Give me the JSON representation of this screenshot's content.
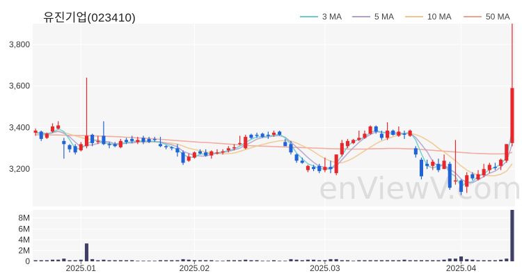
{
  "title": "유진기업(023410)",
  "watermark": "enViewV.com",
  "colors": {
    "up": "#e8262b",
    "down": "#1f63d6",
    "volume": "#3f3f68",
    "panel_bg": "#f6f6f6",
    "grid": "#ffffff"
  },
  "chart_data": {
    "type": "candlestick",
    "price_axis": {
      "ticks": [
        3200,
        3400,
        3600,
        3800
      ],
      "labels": [
        "3,200",
        "3,400",
        "3,600",
        "3,800"
      ],
      "range": [
        3020,
        3900
      ]
    },
    "volume_axis": {
      "ticks": [
        0,
        2,
        4,
        6,
        8
      ],
      "labels": [
        "0",
        "2M",
        "4M",
        "6M",
        "8M"
      ],
      "range": [
        0,
        9.5
      ],
      "unit": "M"
    },
    "x_labels": [
      {
        "text": "2025.01",
        "index": 8
      },
      {
        "text": "2025.02",
        "index": 28
      },
      {
        "text": "2025.03",
        "index": 51
      },
      {
        "text": "2025.04",
        "index": 75
      }
    ],
    "legend": [
      {
        "name": "3 MA",
        "color": "#66cccc"
      },
      {
        "name": "5 MA",
        "color": "#b39dcc"
      },
      {
        "name": "10 MA",
        "color": "#f2c48a"
      },
      {
        "name": "50 MA",
        "color": "#f0a090"
      }
    ],
    "candles": [
      [
        3375,
        3395,
        3360,
        3385,
        0.2
      ],
      [
        3380,
        3385,
        3335,
        3345,
        0.2
      ],
      [
        3350,
        3375,
        3345,
        3370,
        0.2
      ],
      [
        3380,
        3420,
        3375,
        3405,
        0.3
      ],
      [
        3395,
        3430,
        3390,
        3410,
        0.3
      ],
      [
        3335,
        3350,
        3250,
        3320,
        0.5
      ],
      [
        3315,
        3320,
        3280,
        3295,
        0.2
      ],
      [
        3310,
        3320,
        3270,
        3280,
        0.2
      ],
      [
        3290,
        3330,
        3285,
        3320,
        0.3
      ],
      [
        3310,
        3640,
        3300,
        3360,
        3.3
      ],
      [
        3365,
        3370,
        3310,
        3325,
        0.4
      ],
      [
        3330,
        3360,
        3320,
        3335,
        0.2
      ],
      [
        3360,
        3430,
        3315,
        3320,
        0.3
      ],
      [
        3320,
        3330,
        3300,
        3315,
        0.2
      ],
      [
        3320,
        3330,
        3305,
        3310,
        0.2
      ],
      [
        3305,
        3345,
        3300,
        3335,
        0.2
      ],
      [
        3340,
        3350,
        3320,
        3330,
        0.2
      ],
      [
        3345,
        3360,
        3325,
        3335,
        0.2
      ],
      [
        3330,
        3355,
        3320,
        3340,
        0.1
      ],
      [
        3350,
        3360,
        3320,
        3330,
        0.1
      ],
      [
        3345,
        3355,
        3325,
        3330,
        0.1
      ],
      [
        3345,
        3355,
        3330,
        3340,
        0.1
      ],
      [
        3320,
        3355,
        3305,
        3310,
        0.2
      ],
      [
        3310,
        3315,
        3295,
        3305,
        0.2
      ],
      [
        3305,
        3310,
        3290,
        3300,
        0.2
      ],
      [
        3300,
        3320,
        3260,
        3280,
        0.2
      ],
      [
        3280,
        3290,
        3220,
        3230,
        0.4
      ],
      [
        3240,
        3275,
        3235,
        3260,
        0.3
      ],
      [
        3255,
        3285,
        3250,
        3280,
        0.2
      ],
      [
        3285,
        3295,
        3270,
        3275,
        0.2
      ],
      [
        3280,
        3295,
        3260,
        3265,
        0.2
      ],
      [
        3265,
        3290,
        3250,
        3285,
        0.2
      ],
      [
        3280,
        3295,
        3270,
        3280,
        0.1
      ],
      [
        3280,
        3295,
        3270,
        3285,
        0.1
      ],
      [
        3290,
        3310,
        3280,
        3300,
        0.2
      ],
      [
        3300,
        3320,
        3290,
        3305,
        0.2
      ],
      [
        3320,
        3360,
        3315,
        3325,
        0.2
      ],
      [
        3300,
        3365,
        3295,
        3355,
        0.3
      ],
      [
        3365,
        3370,
        3345,
        3350,
        0.2
      ],
      [
        3365,
        3375,
        3350,
        3360,
        0.2
      ],
      [
        3370,
        3375,
        3350,
        3355,
        0.1
      ],
      [
        3365,
        3380,
        3345,
        3360,
        0.1
      ],
      [
        3365,
        3385,
        3355,
        3375,
        0.2
      ],
      [
        3380,
        3385,
        3360,
        3365,
        0.1
      ],
      [
        3330,
        3345,
        3310,
        3310,
        0.1
      ],
      [
        3320,
        3335,
        3270,
        3280,
        0.4
      ],
      [
        3270,
        3275,
        3230,
        3240,
        0.3
      ],
      [
        3240,
        3255,
        3225,
        3230,
        0.2
      ],
      [
        3195,
        3220,
        3185,
        3215,
        0.3
      ],
      [
        3210,
        3220,
        3190,
        3200,
        0.3
      ],
      [
        3215,
        3225,
        3180,
        3190,
        0.2
      ],
      [
        3195,
        3255,
        3185,
        3210,
        0.2
      ],
      [
        3210,
        3240,
        3180,
        3200,
        0.4
      ],
      [
        3180,
        3270,
        3170,
        3270,
        0.4
      ],
      [
        3270,
        3340,
        3260,
        3325,
        0.2
      ],
      [
        3310,
        3345,
        3300,
        3335,
        0.2
      ],
      [
        3325,
        3345,
        3320,
        3340,
        0.1
      ],
      [
        3340,
        3385,
        3335,
        3350,
        0.2
      ],
      [
        3350,
        3385,
        3345,
        3370,
        0.2
      ],
      [
        3370,
        3410,
        3365,
        3405,
        0.2
      ],
      [
        3405,
        3410,
        3370,
        3380,
        0.2
      ],
      [
        3370,
        3385,
        3340,
        3350,
        0.2
      ],
      [
        3350,
        3425,
        3340,
        3385,
        0.2
      ],
      [
        3385,
        3390,
        3360,
        3365,
        0.2
      ],
      [
        3360,
        3405,
        3355,
        3380,
        0.2
      ],
      [
        3370,
        3385,
        3345,
        3365,
        0.3
      ],
      [
        3360,
        3390,
        3355,
        3385,
        0.2
      ],
      [
        3300,
        3310,
        3255,
        3270,
        0.2
      ],
      [
        3245,
        3255,
        3150,
        3165,
        0.2
      ],
      [
        3225,
        3245,
        3200,
        3215,
        0.2
      ],
      [
        3215,
        3245,
        3195,
        3235,
        0.2
      ],
      [
        3225,
        3250,
        3185,
        3195,
        0.2
      ],
      [
        3200,
        3270,
        3200,
        3240,
        0.3
      ],
      [
        3225,
        3235,
        3100,
        3110,
        0.5
      ],
      [
        3140,
        3340,
        3125,
        3145,
        0.5
      ],
      [
        3145,
        3150,
        3075,
        3090,
        0.9
      ],
      [
        3115,
        3185,
        3085,
        3170,
        0.4
      ],
      [
        3175,
        3185,
        3145,
        3155,
        0.3
      ],
      [
        3150,
        3195,
        3145,
        3175,
        0.2
      ],
      [
        3170,
        3225,
        3160,
        3200,
        0.2
      ],
      [
        3195,
        3230,
        3180,
        3220,
        0.2
      ],
      [
        3210,
        3230,
        3195,
        3205,
        0.2
      ],
      [
        3215,
        3250,
        3195,
        3245,
        0.3
      ],
      [
        3240,
        3320,
        3230,
        3320,
        0.5
      ],
      [
        3325,
        3900,
        3310,
        3590,
        9.5
      ]
    ],
    "ma3": [
      3375,
      3371,
      3368,
      3374,
      3394,
      3380,
      3342,
      3298,
      3298,
      3320,
      3335,
      3340,
      3326,
      3323,
      3315,
      3320,
      3325,
      3333,
      3335,
      3335,
      3332,
      3333,
      3327,
      3318,
      3305,
      3295,
      3270,
      3257,
      3257,
      3272,
      3273,
      3275,
      3277,
      3283,
      3288,
      3297,
      3310,
      3328,
      3343,
      3355,
      3355,
      3358,
      3363,
      3367,
      3350,
      3318,
      3277,
      3250,
      3225,
      3215,
      3202,
      3200,
      3200,
      3227,
      3265,
      3310,
      3333,
      3342,
      3353,
      3377,
      3385,
      3378,
      3372,
      3367,
      3370,
      3370,
      3377,
      3340,
      3273,
      3217,
      3205,
      3215,
      3223,
      3182,
      3165,
      3115,
      3135,
      3138,
      3167,
      3177,
      3198,
      3208,
      3223,
      3257,
      3385
    ],
    "ma5": [
      3375,
      3373,
      3370,
      3376,
      3383,
      3372,
      3355,
      3330,
      3305,
      3315,
      3316,
      3323,
      3333,
      3331,
      3321,
      3325,
      3326,
      3325,
      3330,
      3334,
      3335,
      3333,
      3331,
      3323,
      3317,
      3307,
      3285,
      3275,
      3265,
      3263,
      3262,
      3271,
      3276,
      3280,
      3285,
      3292,
      3300,
      3316,
      3329,
      3344,
      3352,
      3355,
      3359,
      3361,
      3353,
      3330,
      3305,
      3281,
      3255,
      3232,
      3213,
      3208,
      3202,
      3214,
      3245,
      3275,
      3303,
      3328,
      3350,
      3366,
      3379,
      3377,
      3376,
      3377,
      3372,
      3372,
      3373,
      3352,
      3318,
      3284,
      3236,
      3211,
      3220,
      3199,
      3181,
      3152,
      3135,
      3134,
      3148,
      3164,
      3180,
      3190,
      3209,
      3237,
      3320
    ],
    "ma10": [
      3375,
      3373,
      3372,
      3374,
      3380,
      3376,
      3368,
      3360,
      3352,
      3345,
      3343,
      3338,
      3330,
      3322,
      3317,
      3320,
      3324,
      3330,
      3332,
      3328,
      3330,
      3330,
      3329,
      3327,
      3324,
      3320,
      3310,
      3300,
      3294,
      3288,
      3282,
      3278,
      3275,
      3273,
      3274,
      3277,
      3285,
      3294,
      3302,
      3311,
      3318,
      3325,
      3331,
      3336,
      3337,
      3335,
      3325,
      3312,
      3300,
      3284,
      3266,
      3250,
      3238,
      3230,
      3230,
      3240,
      3253,
      3270,
      3288,
      3305,
      3322,
      3336,
      3346,
      3355,
      3364,
      3370,
      3372,
      3366,
      3355,
      3340,
      3322,
      3300,
      3282,
      3262,
      3240,
      3215,
      3195,
      3180,
      3172,
      3170,
      3168,
      3168,
      3175,
      3190,
      3225
    ],
    "ma50": [
      3365,
      3365,
      3364,
      3364,
      3364,
      3363,
      3362,
      3362,
      3361,
      3361,
      3360,
      3359,
      3358,
      3357,
      3356,
      3355,
      3353,
      3352,
      3350,
      3349,
      3347,
      3345,
      3343,
      3341,
      3339,
      3337,
      3335,
      3333,
      3331,
      3329,
      3328,
      3326,
      3324,
      3322,
      3320,
      3318,
      3316,
      3314,
      3312,
      3311,
      3310,
      3309,
      3308,
      3307,
      3306,
      3305,
      3304,
      3303,
      3302,
      3301,
      3300,
      3299,
      3298,
      3297,
      3297,
      3296,
      3296,
      3296,
      3296,
      3297,
      3298,
      3298,
      3299,
      3299,
      3299,
      3298,
      3297,
      3296,
      3294,
      3292,
      3290,
      3288,
      3286,
      3284,
      3282,
      3280,
      3278,
      3276,
      3275,
      3274,
      3273,
      3273,
      3273,
      3274,
      3280
    ]
  }
}
